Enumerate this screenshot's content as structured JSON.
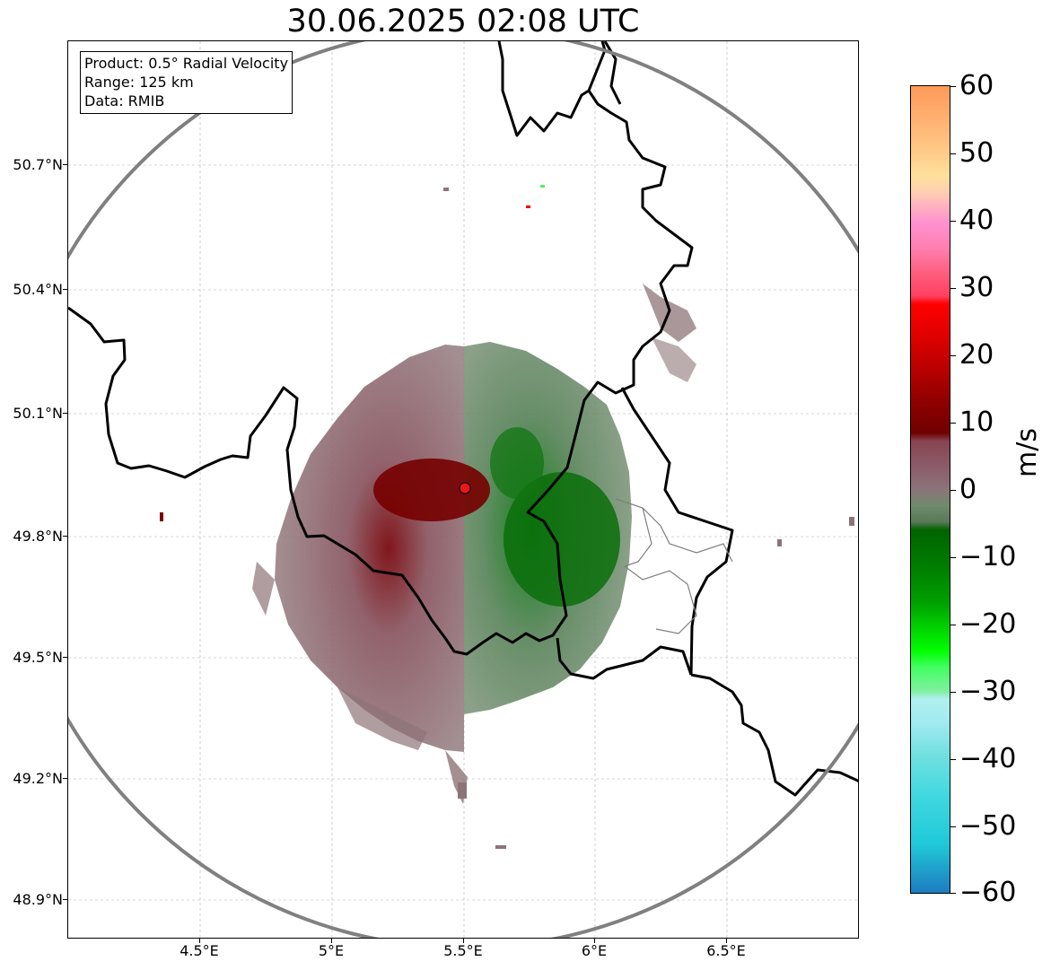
{
  "title": "30.06.2025 02:08 UTC",
  "info_box": {
    "product": "Product: 0.5° Radial Velocity",
    "range": "Range: 125 km",
    "data_source": "Data: RMIB"
  },
  "map": {
    "lat_ticks": [
      "50.7°N",
      "50.4°N",
      "50.1°N",
      "49.8°N",
      "49.5°N",
      "49.2°N",
      "48.9°N"
    ],
    "lon_ticks": [
      "4.5°E",
      "5°E",
      "5.5°E",
      "6°E",
      "6.5°E"
    ],
    "radar_site_color": "#e8191b",
    "range_ring_color": "#808080",
    "border_color": "#000000",
    "admin_border_color": "#7f7f7f"
  },
  "colorbar": {
    "unit": "m/s",
    "tick_labels": [
      "60",
      "50",
      "40",
      "30",
      "20",
      "10",
      "0",
      "−10",
      "−20",
      "−30",
      "−40",
      "−50",
      "−60"
    ],
    "min": -60,
    "max": 60
  },
  "velocity_colors": {
    "inbound_strong": "#006400",
    "inbound_bright": "#00ee00",
    "outbound_strong": "#7b0000",
    "outbound_bright": "#ee0000",
    "near_zero_outbound": "#8a6a70",
    "near_zero_inbound": "#6a8a66"
  }
}
